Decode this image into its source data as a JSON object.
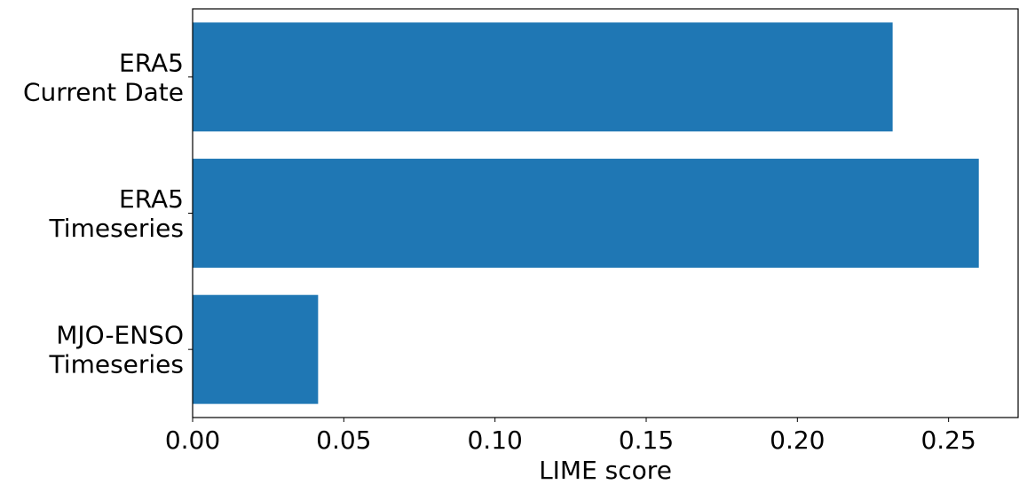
{
  "chart_data": {
    "type": "bar",
    "orientation": "horizontal",
    "categories": [
      [
        "ERA5",
        "Current Date"
      ],
      [
        "ERA5",
        "Timeseries"
      ],
      [
        "MJO-ENSO",
        "Timeseries"
      ]
    ],
    "values": [
      0.2315,
      0.26,
      0.0415
    ],
    "bar_color": "#1f77b4",
    "xlabel": "LIME score",
    "ylabel": "",
    "title": "",
    "xlim": [
      0,
      0.273
    ],
    "xticks": [
      "0.00",
      "0.05",
      "0.10",
      "0.15",
      "0.20",
      "0.25"
    ],
    "grid": false,
    "legend": "none"
  }
}
